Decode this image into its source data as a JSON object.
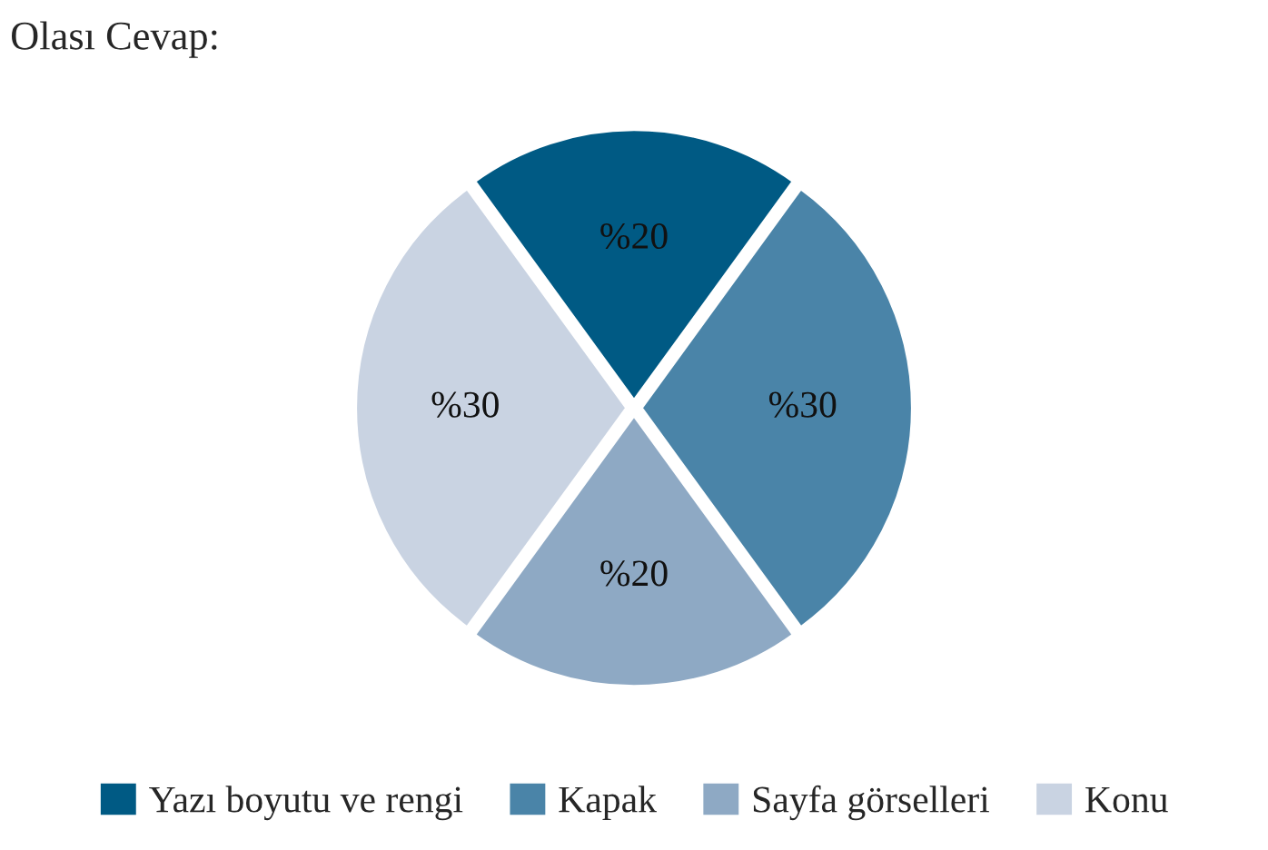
{
  "chart_data": {
    "type": "pie",
    "title": "Olası Cevap:",
    "categories": [
      "Yazı boyutu ve rengi",
      "Kapak",
      "Sayfa görselleri",
      "Konu"
    ],
    "values": [
      20,
      30,
      20,
      30
    ],
    "value_labels": [
      "%20",
      "%30",
      "%20",
      "%30"
    ],
    "colors": [
      "#005a84",
      "#4a84a8",
      "#8ea9c4",
      "#c9d3e2"
    ],
    "legend": "bottom"
  }
}
